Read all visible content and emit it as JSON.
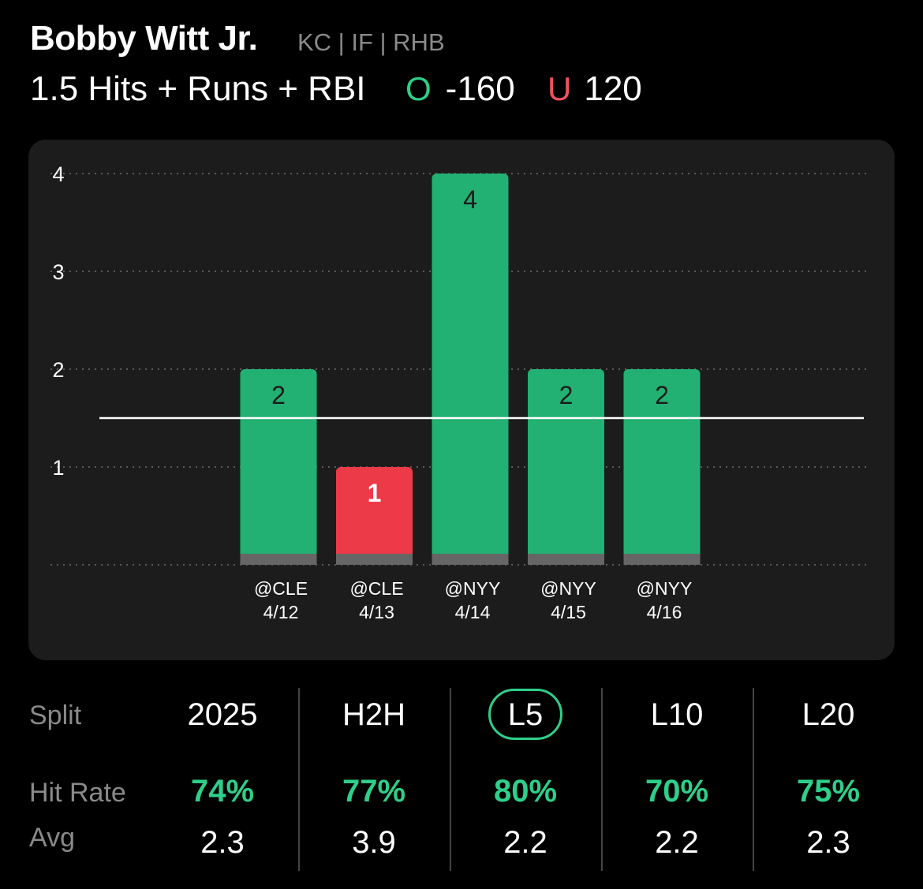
{
  "player": {
    "name": "Bobby Witt Jr.",
    "meta": "KC | IF | RHB"
  },
  "prop": {
    "line_label": "1.5 Hits + Runs + RBI",
    "over_letter": "O",
    "over_odds": "-160",
    "under_letter": "U",
    "under_odds": "120"
  },
  "colors": {
    "over": "#2ecf8a",
    "under": "#f05060",
    "bar_hit": "#22b073",
    "bar_miss": "#ec3a48",
    "card": "#1c1c1c"
  },
  "chart_data": {
    "type": "bar",
    "categories": [
      "@CLE 4/12",
      "@CLE 4/13",
      "@NYY 4/14",
      "@NYY 4/15",
      "@NYY 4/16"
    ],
    "opponents": [
      "@CLE",
      "@CLE",
      "@NYY",
      "@NYY",
      "@NYY"
    ],
    "dates": [
      "4/12",
      "4/13",
      "4/14",
      "4/15",
      "4/16"
    ],
    "values": [
      2,
      1,
      4,
      2,
      2
    ],
    "line": 1.5,
    "ylim": [
      0,
      4
    ],
    "yticks": [
      1,
      2,
      3,
      4
    ],
    "grid": true
  },
  "stats": {
    "row_labels": {
      "split": "Split",
      "hit_rate": "Hit Rate",
      "avg": "Avg"
    },
    "columns": [
      {
        "split": "2025",
        "hit_rate": "74%",
        "avg": "2.3",
        "selected": false
      },
      {
        "split": "H2H",
        "hit_rate": "77%",
        "avg": "3.9",
        "selected": false
      },
      {
        "split": "L5",
        "hit_rate": "80%",
        "avg": "2.2",
        "selected": true
      },
      {
        "split": "L10",
        "hit_rate": "70%",
        "avg": "2.2",
        "selected": false
      },
      {
        "split": "L20",
        "hit_rate": "75%",
        "avg": "2.3",
        "selected": false
      }
    ]
  }
}
